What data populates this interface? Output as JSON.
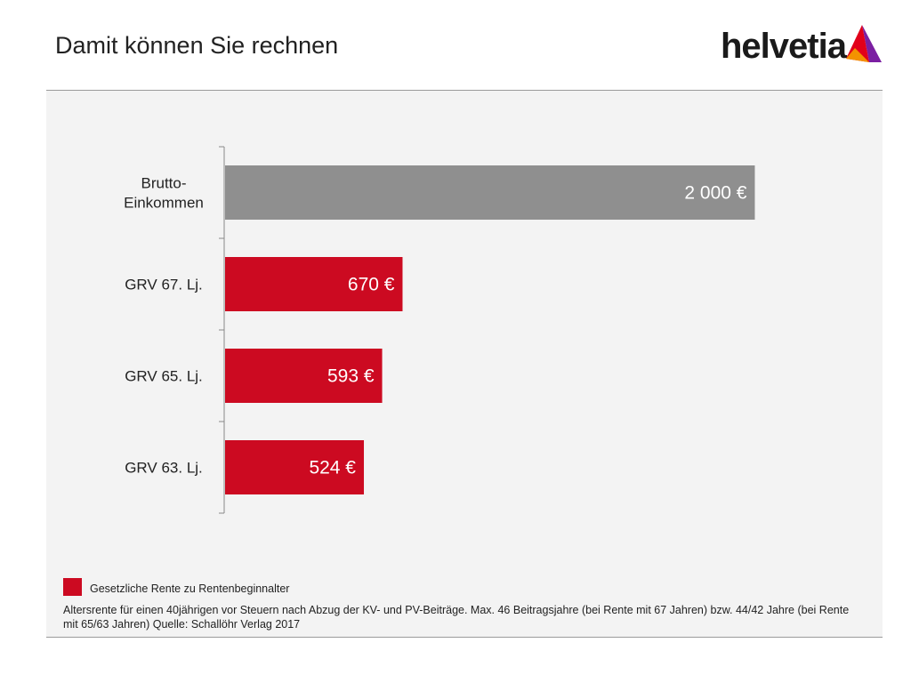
{
  "title": "Damit können Sie rechnen",
  "logo": {
    "text": "helvetia",
    "colors": [
      "#e2001a",
      "#7b1fa2",
      "#f39200"
    ]
  },
  "chart_data": {
    "type": "bar",
    "orientation": "horizontal",
    "categories": [
      [
        "Brutto-",
        "Einkommen"
      ],
      [
        "GRV 67. Lj."
      ],
      [
        "GRV 65. Lj."
      ],
      [
        "GRV 63. Lj."
      ]
    ],
    "values": [
      2000,
      670,
      593,
      524
    ],
    "value_labels": [
      "2 000 €",
      "670 €",
      "593 €",
      "524 €"
    ],
    "bar_colors": [
      "#8f8f8f",
      "#cc0a21",
      "#cc0a21",
      "#cc0a21"
    ],
    "xlim": [
      0,
      2200
    ],
    "grid": false
  },
  "legend": {
    "label": "Gesetzliche Rente zu Rentenbeginnalter",
    "color": "#cc0a21"
  },
  "footnote": "Altersrente für einen 40jährigen vor Steuern nach Abzug der KV- und PV-Beiträge. Max. 46 Beitragsjahre (bei Rente mit 67 Jahren) bzw. 44/42 Jahre (bei Rente mit 65/63 Jahren) Quelle: Schallöhr Verlag 2017"
}
